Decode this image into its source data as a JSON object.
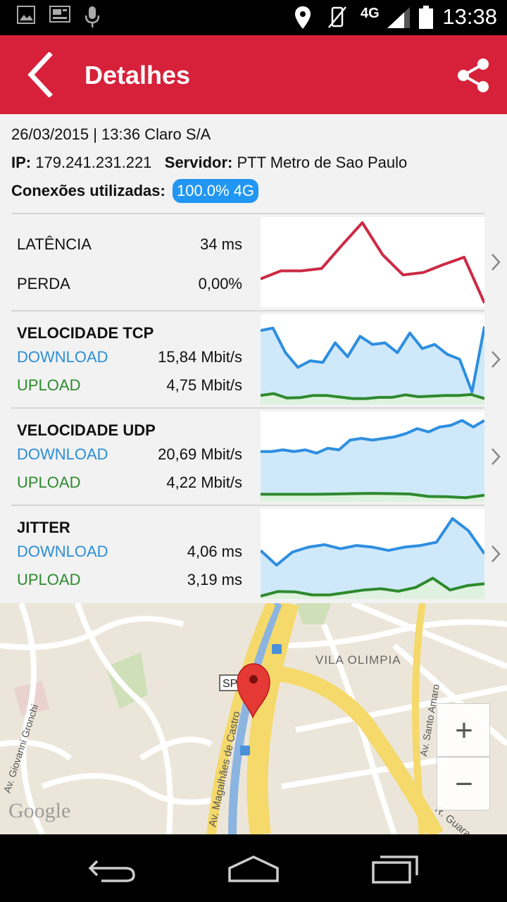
{
  "status_bar": {
    "time": "13:38",
    "network": "4G",
    "icons": [
      "image-icon",
      "cast-icon",
      "mic-icon",
      "location-icon",
      "vibrate-off-icon",
      "signal-icon",
      "battery-icon"
    ]
  },
  "app_bar": {
    "title": "Detalhes",
    "back_icon": "back-chevron-icon",
    "share_icon": "share-icon",
    "color": "#d7213a"
  },
  "info": {
    "datetime_operator": "26/03/2015 | 13:36 Claro S/A",
    "ip_label": "IP:",
    "ip_value": "179.241.231.221",
    "server_label": "Servidor:",
    "server_value": "PTT Metro de Sao Paulo",
    "connections_label": "Conexões utilizadas:",
    "connections_value": "100.0% 4G"
  },
  "metrics": {
    "latency": {
      "label": "LATÊNCIA",
      "value": "34 ms",
      "loss_label": "PERDA",
      "loss_value": "0,00%"
    },
    "tcp": {
      "title": "VELOCIDADE TCP",
      "download_label": "DOWNLOAD",
      "download_value": "15,84 Mbit/s",
      "upload_label": "UPLOAD",
      "upload_value": "4,75 Mbit/s"
    },
    "udp": {
      "title": "VELOCIDADE UDP",
      "download_label": "DOWNLOAD",
      "download_value": "20,69 Mbit/s",
      "upload_label": "UPLOAD",
      "upload_value": "4,22 Mbit/s"
    },
    "jitter": {
      "title": "JITTER",
      "download_label": "DOWNLOAD",
      "download_value": "4,06 ms",
      "upload_label": "UPLOAD",
      "upload_value": "3,19 ms"
    }
  },
  "sparklines": {
    "latency": [
      0.3,
      0.4,
      0.4,
      0.43,
      0.72,
      1.0,
      0.6,
      0.35,
      0.38,
      0.48,
      0.57,
      0.0
    ],
    "tcp_download": [
      0.87,
      0.9,
      0.6,
      0.42,
      0.5,
      0.48,
      0.72,
      0.55,
      0.8,
      0.7,
      0.72,
      0.6,
      0.84,
      0.65,
      0.7,
      0.58,
      0.52,
      0.12,
      0.92
    ],
    "tcp_upload": [
      0.2,
      0.26,
      0.12,
      0.13,
      0.2,
      0.2,
      0.15,
      0.1,
      0.1,
      0.14,
      0.14,
      0.22,
      0.16,
      0.18,
      0.2,
      0.2,
      0.23,
      0.1
    ],
    "udp_download": [
      0.58,
      0.58,
      0.6,
      0.58,
      0.6,
      0.56,
      0.62,
      0.6,
      0.72,
      0.74,
      0.72,
      0.74,
      0.76,
      0.8,
      0.86,
      0.82,
      0.88,
      0.9,
      0.96,
      0.88,
      0.96
    ],
    "udp_upload": [
      0.15,
      0.15,
      0.15,
      0.15,
      0.16,
      0.17,
      0.18,
      0.17,
      0.16,
      0.08,
      0.07,
      0.04,
      0.12
    ],
    "jitter_download": [
      0.56,
      0.38,
      0.54,
      0.6,
      0.63,
      0.58,
      0.62,
      0.6,
      0.56,
      0.6,
      0.62,
      0.66,
      0.95,
      0.8,
      0.52
    ],
    "jitter_upload": [
      0.0,
      0.15,
      0.14,
      0.04,
      0.04,
      0.12,
      0.2,
      0.24,
      0.16,
      0.28,
      0.58,
      0.2,
      0.34,
      0.4
    ]
  },
  "colors": {
    "latency": "#cc2a45",
    "download": "#2e8ee0",
    "upload": "#2e8a2e",
    "download_fill": "#cfe9fb",
    "upload_fill": "#dff2df"
  },
  "map": {
    "district_label": "VILA OLIMPIA",
    "street_1": "Av. Magalhães de Castro",
    "street_2": "R. Guararapes",
    "street_3": "Av. Santo Amaro",
    "street_4": "Av. Giovanni Gronchi",
    "route_badge": "SP",
    "logo": "Google",
    "zoom_in_label": "+",
    "zoom_out_label": "−"
  },
  "nav_bar": {
    "icons": [
      "back-nav-icon",
      "home-icon",
      "recents-icon"
    ]
  }
}
